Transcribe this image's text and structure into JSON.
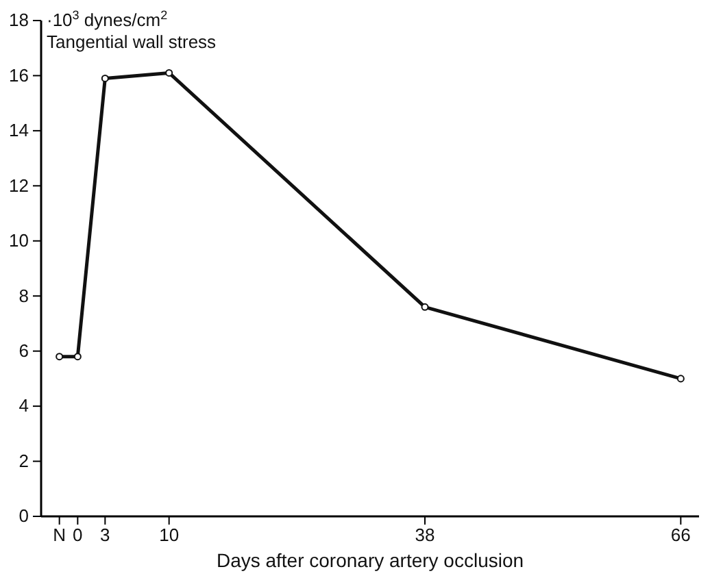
{
  "chart_data": {
    "type": "line",
    "title": "Tangential wall stress",
    "ylabel": "·10$^{3}$ dynes/cm$^{2}$",
    "xlabel": "Days after coronary artery occlusion",
    "x": [
      -2,
      0,
      3,
      10,
      38,
      66
    ],
    "series": [
      {
        "color": "#111111",
        "values": [
          5.8,
          5.8,
          15.9,
          16.1,
          7.6,
          5.0
        ]
      }
    ],
    "xlim": [
      -4,
      68
    ],
    "xticks": [
      {
        "value": -2,
        "label": "N"
      },
      0,
      3,
      10,
      38,
      66
    ],
    "ylim": [
      0,
      18
    ],
    "yticks": [
      0,
      2,
      4,
      6,
      8,
      10,
      12,
      14,
      16,
      18
    ],
    "grid": false,
    "marker": "circle",
    "line_style": "solid"
  }
}
